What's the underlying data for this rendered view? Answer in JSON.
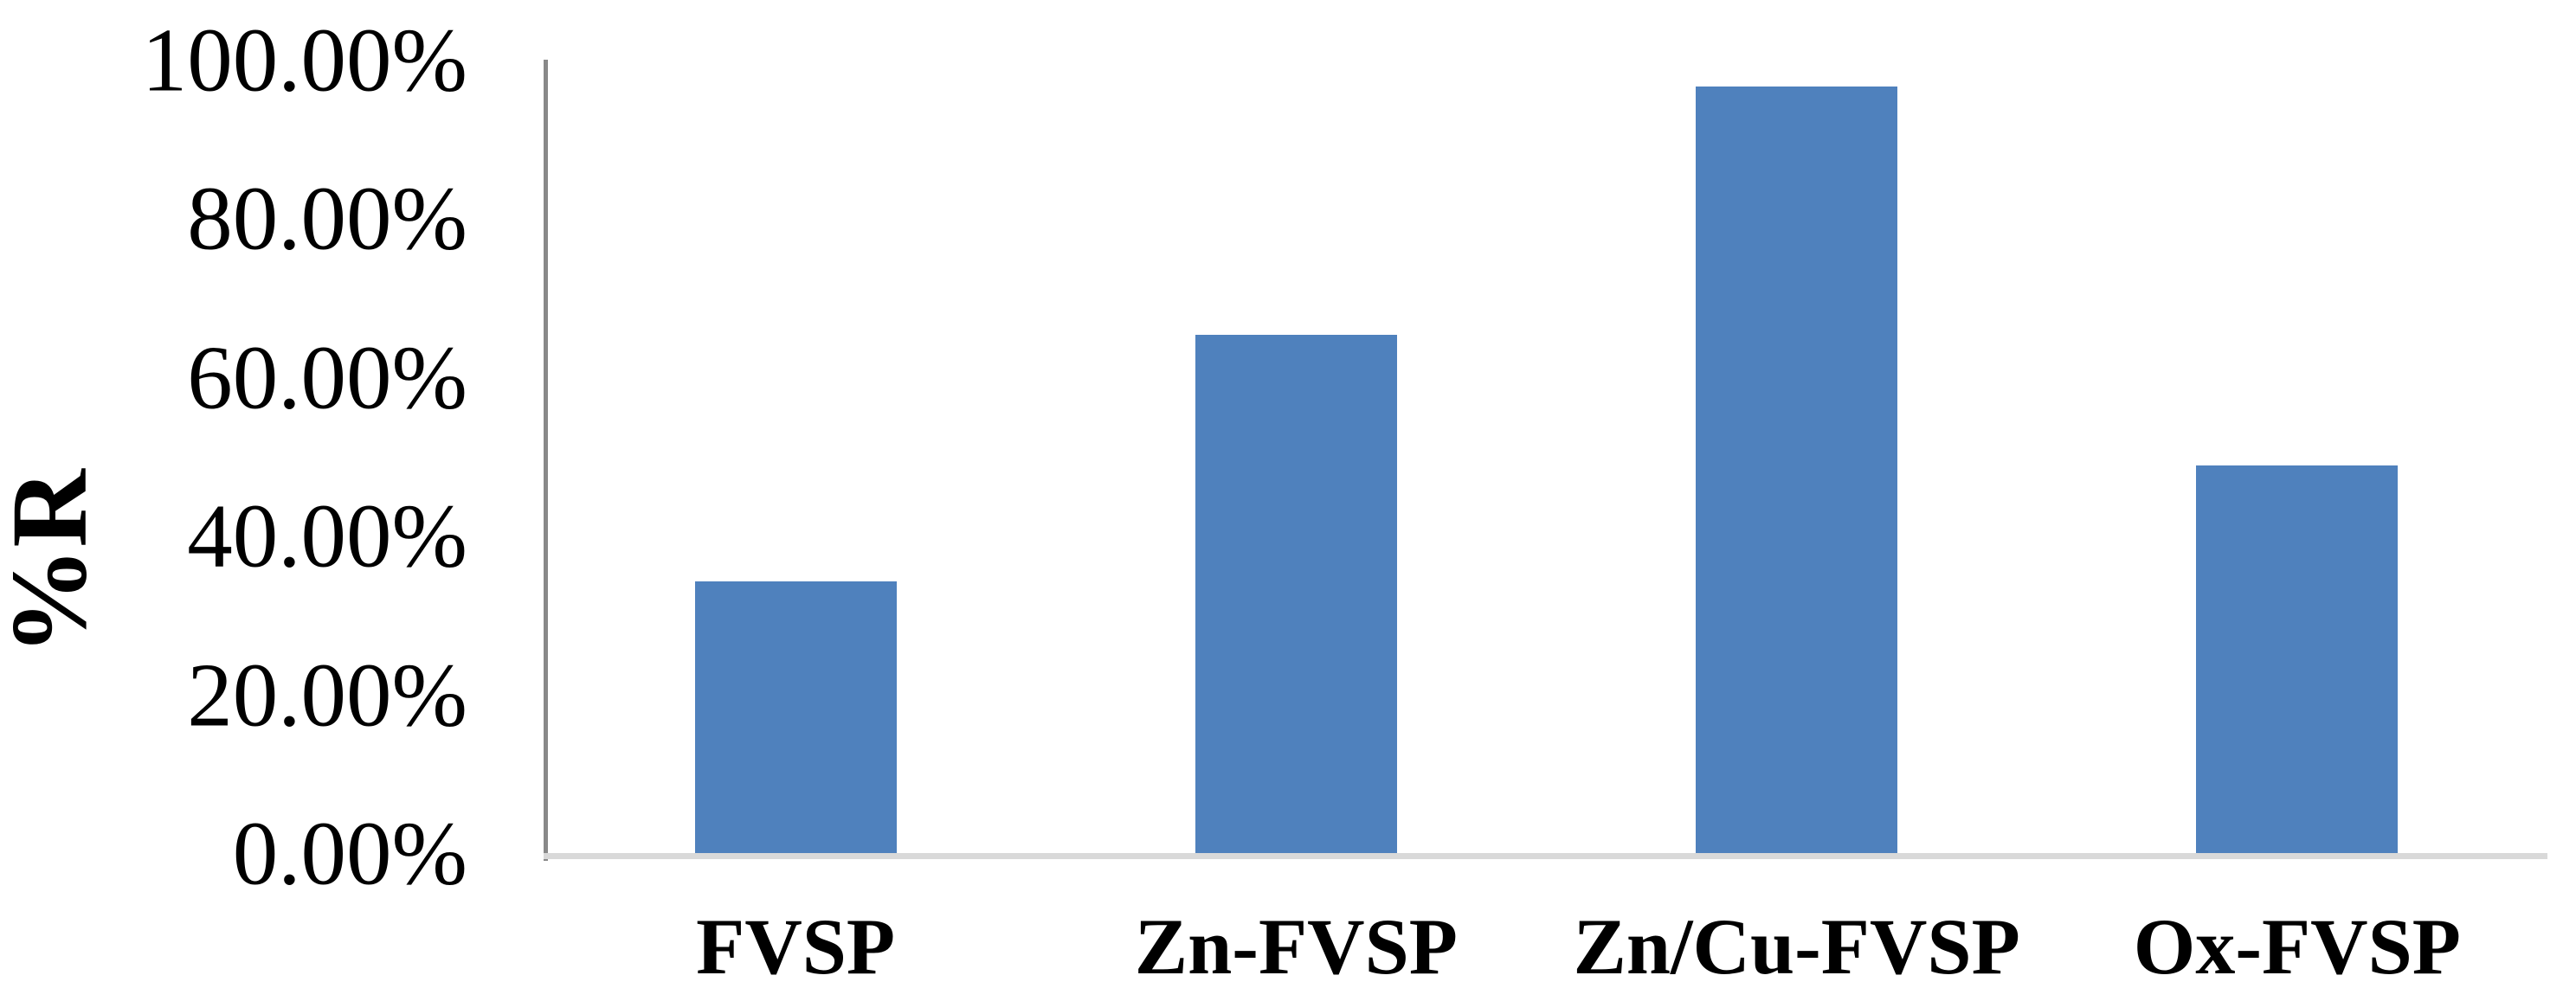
{
  "chart_data": {
    "type": "bar",
    "title": "",
    "ylabel": "%R",
    "xlabel": "",
    "categories": [
      "FVSP",
      "Zn-FVSP",
      "Zn/Cu-FVSP",
      "Ox-FVSP"
    ],
    "values": [
      34.2,
      65.3,
      96.6,
      48.9
    ],
    "ylim": [
      0,
      100
    ],
    "ytick_values": [
      0,
      20,
      40,
      60,
      80,
      100
    ],
    "ytick_labels": [
      "0.00%",
      "20.00%",
      "40.00%",
      "60.00%",
      "80.00%",
      "100.00%"
    ],
    "grid": "off",
    "legend": "none",
    "bar_color": "#4f81bd",
    "axis_line_color": "#898989",
    "baseline_color": "#d9d9d9",
    "text_color": "#000000",
    "background_color": "#ffffff"
  }
}
